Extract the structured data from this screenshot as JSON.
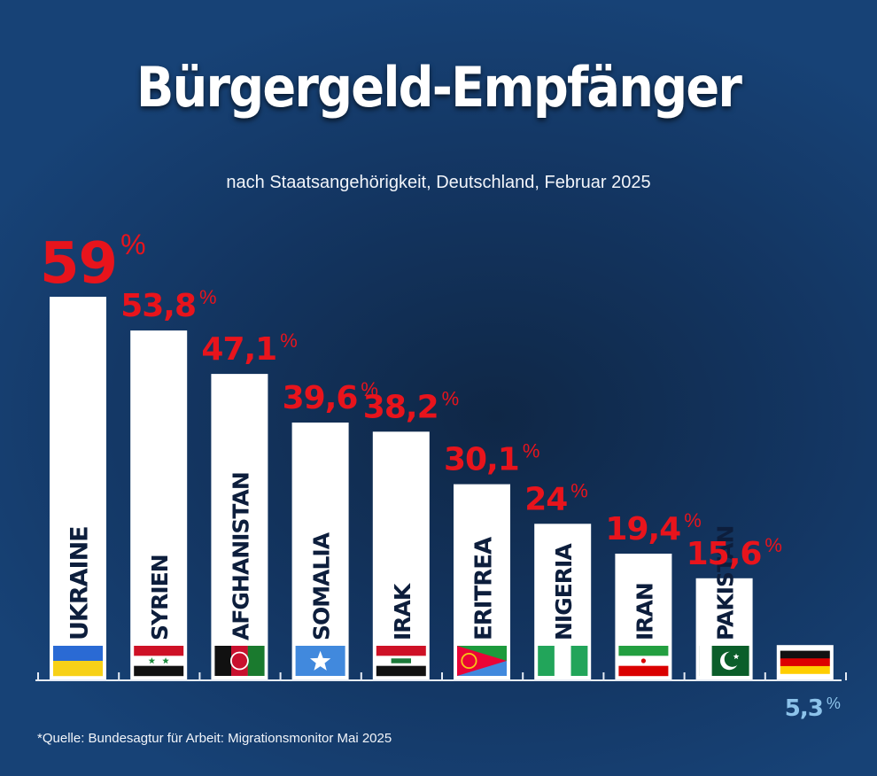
{
  "chart_data": {
    "type": "bar",
    "title": "Bürgergeld-Empfänger",
    "subtitle": "nach Staatsangehörigkeit, Deutschland, Februar 2025",
    "categories": [
      "UKRAINE",
      "SYRIEN",
      "AFGHANISTAN",
      "SOMALIA",
      "IRAK",
      "ERITREA",
      "NIGERIA",
      "IRAN",
      "PAKISTAN",
      ""
    ],
    "values": [
      59,
      53.8,
      47.1,
      39.6,
      38.2,
      30.1,
      24,
      19.4,
      15.6,
      5.3
    ],
    "value_labels": [
      "59",
      "53,8",
      "47,1",
      "39,6",
      "38,2",
      "30,1",
      "24",
      "19,4",
      "15,6",
      "5,3"
    ],
    "unit_symbol": "%",
    "flags": [
      "ukraine-flag",
      "syria-flag",
      "afghanistan-flag",
      "somalia-flag",
      "iraq-flag",
      "eritrea-flag",
      "nigeria-flag",
      "iran-flag",
      "pakistan-flag",
      "germany-flag"
    ],
    "xlabel": "",
    "ylabel": "",
    "ylim": [
      0,
      59
    ],
    "grid": false,
    "legend": "none",
    "colors": {
      "bar": "#ffffff",
      "value_label": "#e8141c",
      "last_value_label": "#8dc3ea",
      "bar_label": "#0d1e3c",
      "background": "#133561",
      "axis": "#e6ecf5"
    }
  },
  "source": "*Quelle: Bundesagtur für Arbeit: Migrationsmonitor Mai 2025"
}
